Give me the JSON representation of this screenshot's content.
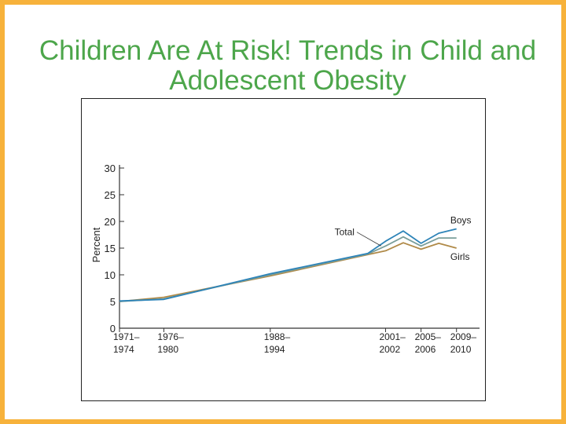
{
  "slide": {
    "title": "Children Are At Risk! Trends in Child and Adolescent Obesity"
  },
  "colors": {
    "border": "#f7b23b",
    "title": "#4da64b",
    "total": "#7a9e9a",
    "boys": "#2e84b8",
    "girls": "#b08a48"
  },
  "chart_data": {
    "type": "line",
    "title": "",
    "xlabel": "",
    "ylabel": "Percent",
    "ylim": [
      0,
      30
    ],
    "yticks": [
      0,
      5,
      10,
      15,
      20,
      25,
      30
    ],
    "xrange": [
      1971,
      2010
    ],
    "x_ticks": [
      {
        "x": 1971,
        "line1": "1971–",
        "line2": "1974"
      },
      {
        "x": 1976,
        "line1": "1976–",
        "line2": "1980"
      },
      {
        "x": 1988,
        "line1": "1988–",
        "line2": "1994"
      },
      {
        "x": 2001,
        "line1": "2001–",
        "line2": "2002"
      },
      {
        "x": 2005,
        "line1": "2005–",
        "line2": "2006"
      },
      {
        "x": 2009,
        "line1": "2009–",
        "line2": "2010"
      }
    ],
    "x": [
      1971,
      1976,
      1988,
      1999,
      2001,
      2003,
      2005,
      2007,
      2009
    ],
    "series": [
      {
        "name": "Total",
        "key": "total",
        "values": [
          5.0,
          5.5,
          10.0,
          13.9,
          15.4,
          17.1,
          15.4,
          16.9,
          16.9
        ]
      },
      {
        "name": "Boys",
        "key": "boys",
        "values": [
          5.1,
          5.4,
          10.2,
          14.0,
          16.3,
          18.2,
          15.9,
          17.8,
          18.6
        ]
      },
      {
        "name": "Girls",
        "key": "girls",
        "values": [
          5.0,
          5.8,
          9.8,
          13.8,
          14.5,
          16.0,
          14.8,
          15.9,
          15.0
        ]
      }
    ],
    "annotations": [
      {
        "series": "total",
        "text": "Total",
        "x": 1997.5,
        "y": 17.4,
        "arrow_to": [
          2000.5,
          15.4
        ]
      },
      {
        "series": "boys",
        "text": "Boys",
        "x": 2008.3,
        "y": 19.6
      },
      {
        "series": "girls",
        "text": "Girls",
        "x": 2008.3,
        "y": 12.8
      }
    ]
  }
}
